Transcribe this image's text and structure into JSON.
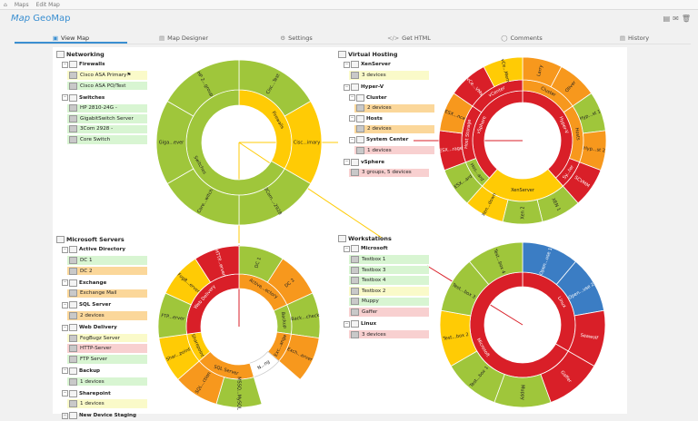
{
  "breadcrumb": {
    "home_icon": "home-icon",
    "items": [
      "Maps",
      "Edit Map"
    ]
  },
  "header": {
    "title_prefix": "Map",
    "title": "GeoMap",
    "actions": [
      "export-icon",
      "mail-icon",
      "trash-icon"
    ]
  },
  "tabs": [
    {
      "label": "View Map",
      "icon": "map-icon",
      "active": true
    },
    {
      "label": "Map Designer",
      "icon": "designer-icon",
      "active": false
    },
    {
      "label": "Settings",
      "icon": "gear-icon",
      "active": false
    },
    {
      "label": "Get HTML",
      "icon": "code-icon",
      "active": false
    },
    {
      "label": "Comments",
      "icon": "comment-icon",
      "active": false
    },
    {
      "label": "History",
      "icon": "history-icon",
      "active": false
    }
  ],
  "colors": {
    "green": "#9fc63b",
    "yellow": "#ffcb05",
    "orange": "#f7981d",
    "red": "#d91f28",
    "blue": "#3b7dc4",
    "white": "#ffffff",
    "accent": "#3a8fd1"
  },
  "trees": [
    {
      "id": "networking",
      "rows": [
        {
          "level": 0,
          "type": "root",
          "label": "Networking"
        },
        {
          "level": 1,
          "type": "group",
          "label": "Firewalls"
        },
        {
          "level": 2,
          "type": "device",
          "label": "Cisco ASA Primary",
          "status": "yellow",
          "flag": true
        },
        {
          "level": 2,
          "type": "device",
          "label": "Cisco ASA PO/Test",
          "status": "green"
        },
        {
          "level": 1,
          "type": "group",
          "label": "Switches"
        },
        {
          "level": 2,
          "type": "device",
          "label": "HP 2810-24G -",
          "status": "green"
        },
        {
          "level": 2,
          "type": "device",
          "label": "GigabitSwitch Server",
          "status": "green"
        },
        {
          "level": 2,
          "type": "device",
          "label": "3Com 2928 -",
          "status": "green"
        },
        {
          "level": 2,
          "type": "device",
          "label": "Core Switch",
          "status": "green"
        }
      ]
    },
    {
      "id": "microsoft-servers",
      "rows": [
        {
          "level": 0,
          "type": "root",
          "label": "Microsoft Servers"
        },
        {
          "level": 1,
          "type": "group",
          "label": "Active Directory"
        },
        {
          "level": 2,
          "type": "device",
          "label": "DC 1",
          "status": "green"
        },
        {
          "level": 2,
          "type": "device",
          "label": "DC 2",
          "status": "orange"
        },
        {
          "level": 1,
          "type": "group",
          "label": "Exchange"
        },
        {
          "level": 2,
          "type": "device",
          "label": "Exchange Mail",
          "status": "orange"
        },
        {
          "level": 1,
          "type": "group",
          "label": "SQL Server"
        },
        {
          "level": 2,
          "type": "device",
          "label": "2 devices",
          "status": "orange"
        },
        {
          "level": 1,
          "type": "group",
          "label": "Web Delivery"
        },
        {
          "level": 2,
          "type": "device",
          "label": "FogBugz Server",
          "status": "yellow"
        },
        {
          "level": 2,
          "type": "device",
          "label": "HTTP-Server",
          "status": "red"
        },
        {
          "level": 2,
          "type": "device",
          "label": "FTP Server",
          "status": "green"
        },
        {
          "level": 1,
          "type": "group",
          "label": "Backup"
        },
        {
          "level": 2,
          "type": "device",
          "label": "1 devices",
          "status": "green"
        },
        {
          "level": 1,
          "type": "group",
          "label": "Sharepoint"
        },
        {
          "level": 2,
          "type": "device",
          "label": "1 devices",
          "status": "yellow"
        },
        {
          "level": 1,
          "type": "group",
          "label": "New Device Staging"
        }
      ]
    },
    {
      "id": "virtual-hosting",
      "rows": [
        {
          "level": 0,
          "type": "root",
          "label": "Virtual Hosting"
        },
        {
          "level": 1,
          "type": "group",
          "label": "XenServer"
        },
        {
          "level": 2,
          "type": "device",
          "label": "3 devices",
          "status": "yellow"
        },
        {
          "level": 1,
          "type": "group",
          "label": "Hyper-V"
        },
        {
          "level": 2,
          "type": "group",
          "label": "Cluster"
        },
        {
          "level": 3,
          "type": "device",
          "label": "2 devices",
          "status": "orange"
        },
        {
          "level": 2,
          "type": "group",
          "label": "Hosts"
        },
        {
          "level": 3,
          "type": "device",
          "label": "2 devices",
          "status": "orange"
        },
        {
          "level": 2,
          "type": "group",
          "label": "System Center"
        },
        {
          "level": 3,
          "type": "device",
          "label": "1 devices",
          "status": "red"
        },
        {
          "level": 1,
          "type": "group",
          "label": "vSphere"
        },
        {
          "level": 2,
          "type": "device",
          "label": "3 groups, 5 devices",
          "status": "red"
        }
      ]
    },
    {
      "id": "workstations",
      "rows": [
        {
          "level": 0,
          "type": "root",
          "label": "Workstations"
        },
        {
          "level": 1,
          "type": "group",
          "label": "Microsoft"
        },
        {
          "level": 2,
          "type": "device",
          "label": "Testbox 1",
          "status": "green"
        },
        {
          "level": 2,
          "type": "device",
          "label": "Testbox 3",
          "status": "green"
        },
        {
          "level": 2,
          "type": "device",
          "label": "Testbox 4",
          "status": "green"
        },
        {
          "level": 2,
          "type": "device",
          "label": "Testbox 2",
          "status": "yellow"
        },
        {
          "level": 2,
          "type": "device",
          "label": "Muppy",
          "status": "green"
        },
        {
          "level": 2,
          "type": "device",
          "label": "Gaffer",
          "status": "red"
        },
        {
          "level": 1,
          "type": "group",
          "label": "Linux"
        },
        {
          "level": 2,
          "type": "device",
          "label": "3 devices",
          "status": "red"
        }
      ]
    }
  ],
  "chart_data": [
    {
      "type": "sunburst",
      "id": "networking",
      "nodes": [
        {
          "label": "Firewalls",
          "color": "yellow",
          "children": [
            {
              "label": "Cisc...Test",
              "color": "green"
            },
            {
              "label": "Cisc...imary",
              "color": "yellow"
            }
          ]
        },
        {
          "label": "Switches",
          "color": "green",
          "children": [
            {
              "label": "3Com...-2928",
              "color": "green"
            },
            {
              "label": "Core...witch",
              "color": "green"
            },
            {
              "label": "Giga...ever",
              "color": "green"
            },
            {
              "label": "HP 2...group",
              "color": "green"
            }
          ]
        }
      ]
    },
    {
      "type": "sunburst",
      "id": "virtual-hosting",
      "nodes": [
        {
          "label": "Hyper-V",
          "color": "red",
          "children": [
            {
              "label": "Cluster",
              "color": "orange",
              "children": [
                {
                  "label": "Larry",
                  "color": "orange"
                },
                {
                  "label": "Oliver",
                  "color": "orange"
                }
              ]
            },
            {
              "label": "Hosts",
              "color": "orange",
              "children": [
                {
                  "label": "Hyp...st 1",
                  "color": "green"
                },
                {
                  "label": "Hyp...st 2",
                  "color": "orange"
                }
              ]
            },
            {
              "label": "Sy...ter",
              "color": "red",
              "children": [
                {
                  "label": "SCVMM",
                  "color": "red"
                }
              ]
            }
          ]
        },
        {
          "label": "XenServer",
          "color": "yellow",
          "children": [
            {
              "label": "XEN 1",
              "color": "green"
            },
            {
              "label": "Xen 2",
              "color": "green"
            },
            {
              "label": "Xen...down",
              "color": "yellow"
            }
          ]
        },
        {
          "label": "vSphere",
          "color": "red",
          "children": [
            {
              "label": "Hos...ard",
              "color": "green",
              "children": [
                {
                  "label": "ESX...ard",
                  "color": "green"
                }
              ]
            },
            {
              "label": "Host Storage",
              "color": "red",
              "children": [
                {
                  "label": "ESX...rage",
                  "color": "red"
                },
                {
                  "label": "ESX...nce",
                  "color": "orange"
                }
              ]
            },
            {
              "label": "vCenter",
              "color": "red",
              "children": [
                {
                  "label": "vCe...VMs",
                  "color": "red"
                },
                {
                  "label": "vCe...Mem",
                  "color": "yellow"
                }
              ]
            }
          ]
        }
      ]
    },
    {
      "type": "sunburst",
      "id": "microsoft-servers",
      "nodes": [
        {
          "label": "Active...ectory",
          "color": "orange",
          "children": [
            {
              "label": "DC 1",
              "color": "green"
            },
            {
              "label": "DC 2",
              "color": "orange"
            }
          ]
        },
        {
          "label": "Backup",
          "color": "green",
          "children": [
            {
              "label": "Back...check",
              "color": "green"
            }
          ]
        },
        {
          "label": "Exc...ange",
          "color": "orange",
          "children": [
            {
              "label": "Exch...erver",
              "color": "orange"
            }
          ]
        },
        {
          "label": "N...ng",
          "color": "white",
          "children": []
        },
        {
          "label": "SQL Server",
          "color": "orange",
          "children": [
            {
              "label": "MSSQ...MySQL",
              "color": "green"
            },
            {
              "label": "SQL...ction",
              "color": "orange"
            }
          ]
        },
        {
          "label": "Sharepoint",
          "color": "yellow",
          "children": [
            {
              "label": "Shar...point",
              "color": "yellow"
            }
          ]
        },
        {
          "label": "Web Delivery",
          "color": "red",
          "children": [
            {
              "label": "FTP...erver",
              "color": "green"
            },
            {
              "label": "FogB...erver",
              "color": "yellow"
            },
            {
              "label": "HTTP...erver",
              "color": "red"
            }
          ]
        }
      ]
    },
    {
      "type": "sunburst",
      "id": "workstations",
      "nodes": [
        {
          "label": "Linux",
          "color": "red",
          "children": [
            {
              "label": "Open...use 1",
              "color": "blue"
            },
            {
              "label": "Open...use 2",
              "color": "blue"
            },
            {
              "label": "Seawolf",
              "color": "red"
            }
          ]
        },
        {
          "label": "Microsoft",
          "color": "red",
          "children": [
            {
              "label": "Gaffer",
              "color": "red"
            },
            {
              "label": "Muppy",
              "color": "green"
            },
            {
              "label": "Test...box 1",
              "color": "green"
            },
            {
              "label": "Test...box 2",
              "color": "yellow"
            },
            {
              "label": "Test...box 3",
              "color": "green"
            },
            {
              "label": "Test...box 4",
              "color": "green"
            }
          ]
        }
      ]
    }
  ]
}
